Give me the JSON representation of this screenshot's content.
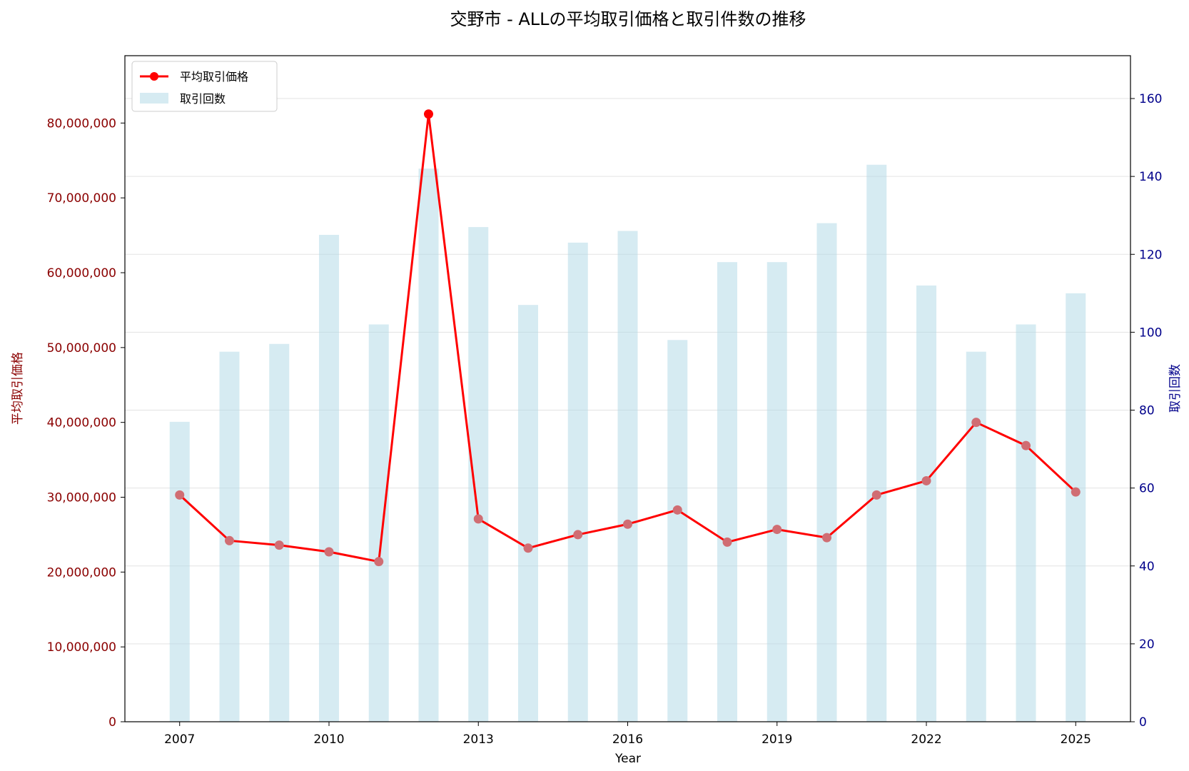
{
  "chart_data": {
    "type": "bar+line",
    "title": "交野市 - ALLの平均取引価格と取引件数の推移",
    "xlabel": "Year",
    "ylabel_left": "平均取引価格",
    "ylabel_right": "取引回数",
    "x": [
      2007,
      2008,
      2009,
      2010,
      2011,
      2012,
      2013,
      2014,
      2015,
      2016,
      2017,
      2018,
      2019,
      2020,
      2021,
      2022,
      2023,
      2024,
      2025
    ],
    "x_ticks": [
      "2007",
      "2010",
      "2013",
      "2016",
      "2019",
      "2022",
      "2025"
    ],
    "xlim": [
      2005.9,
      2026.1
    ],
    "ylim_left": [
      0,
      89000000
    ],
    "ylim_right": [
      0,
      171
    ],
    "yticks_left": [
      "0",
      "10,000,000",
      "20,000,000",
      "30,000,000",
      "40,000,000",
      "50,000,000",
      "60,000,000",
      "70,000,000",
      "80,000,000"
    ],
    "yticks_left_values": [
      0,
      10000000,
      20000000,
      30000000,
      40000000,
      50000000,
      60000000,
      70000000,
      80000000
    ],
    "yticks_right": [
      "0",
      "20",
      "40",
      "60",
      "80",
      "100",
      "120",
      "140",
      "160"
    ],
    "yticks_right_values": [
      0,
      20,
      40,
      60,
      80,
      100,
      120,
      140,
      160
    ],
    "grid": true,
    "legend_position": "top-left",
    "series": [
      {
        "name": "平均取引価格",
        "kind": "line",
        "axis": "left",
        "color": "#ff0000",
        "marker_color": "#d06d73",
        "values": [
          30300000,
          24200000,
          23600000,
          22700000,
          21400000,
          81200000,
          27100000,
          23200000,
          25000000,
          26400000,
          28300000,
          24000000,
          25700000,
          24600000,
          30300000,
          32200000,
          40000000,
          36900000,
          30700000
        ]
      },
      {
        "name": "取引回数",
        "kind": "bar",
        "axis": "right",
        "color": "#add8e6",
        "values": [
          77,
          95,
          97,
          125,
          102,
          142,
          127,
          107,
          123,
          126,
          98,
          118,
          118,
          128,
          143,
          112,
          95,
          102,
          110
        ]
      }
    ]
  }
}
